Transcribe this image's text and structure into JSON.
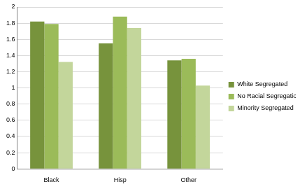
{
  "chart_data": {
    "type": "bar",
    "categories": [
      "Black",
      "Hisp",
      "Other"
    ],
    "series": [
      {
        "name": "White Segregated",
        "color": "#77933c",
        "values": [
          1.82,
          1.55,
          1.34
        ]
      },
      {
        "name": "No Racial Segregation",
        "color": "#9bbb59",
        "values": [
          1.79,
          1.88,
          1.36
        ]
      },
      {
        "name": "Minority Segregated",
        "color": "#c3d69b",
        "values": [
          1.32,
          1.74,
          1.03
        ]
      }
    ],
    "ylim": [
      0,
      2
    ],
    "yticks": [
      0,
      0.2,
      0.4,
      0.6,
      0.8,
      1,
      1.2,
      1.4,
      1.6,
      1.8,
      2
    ],
    "grid": true,
    "legend": "right"
  }
}
